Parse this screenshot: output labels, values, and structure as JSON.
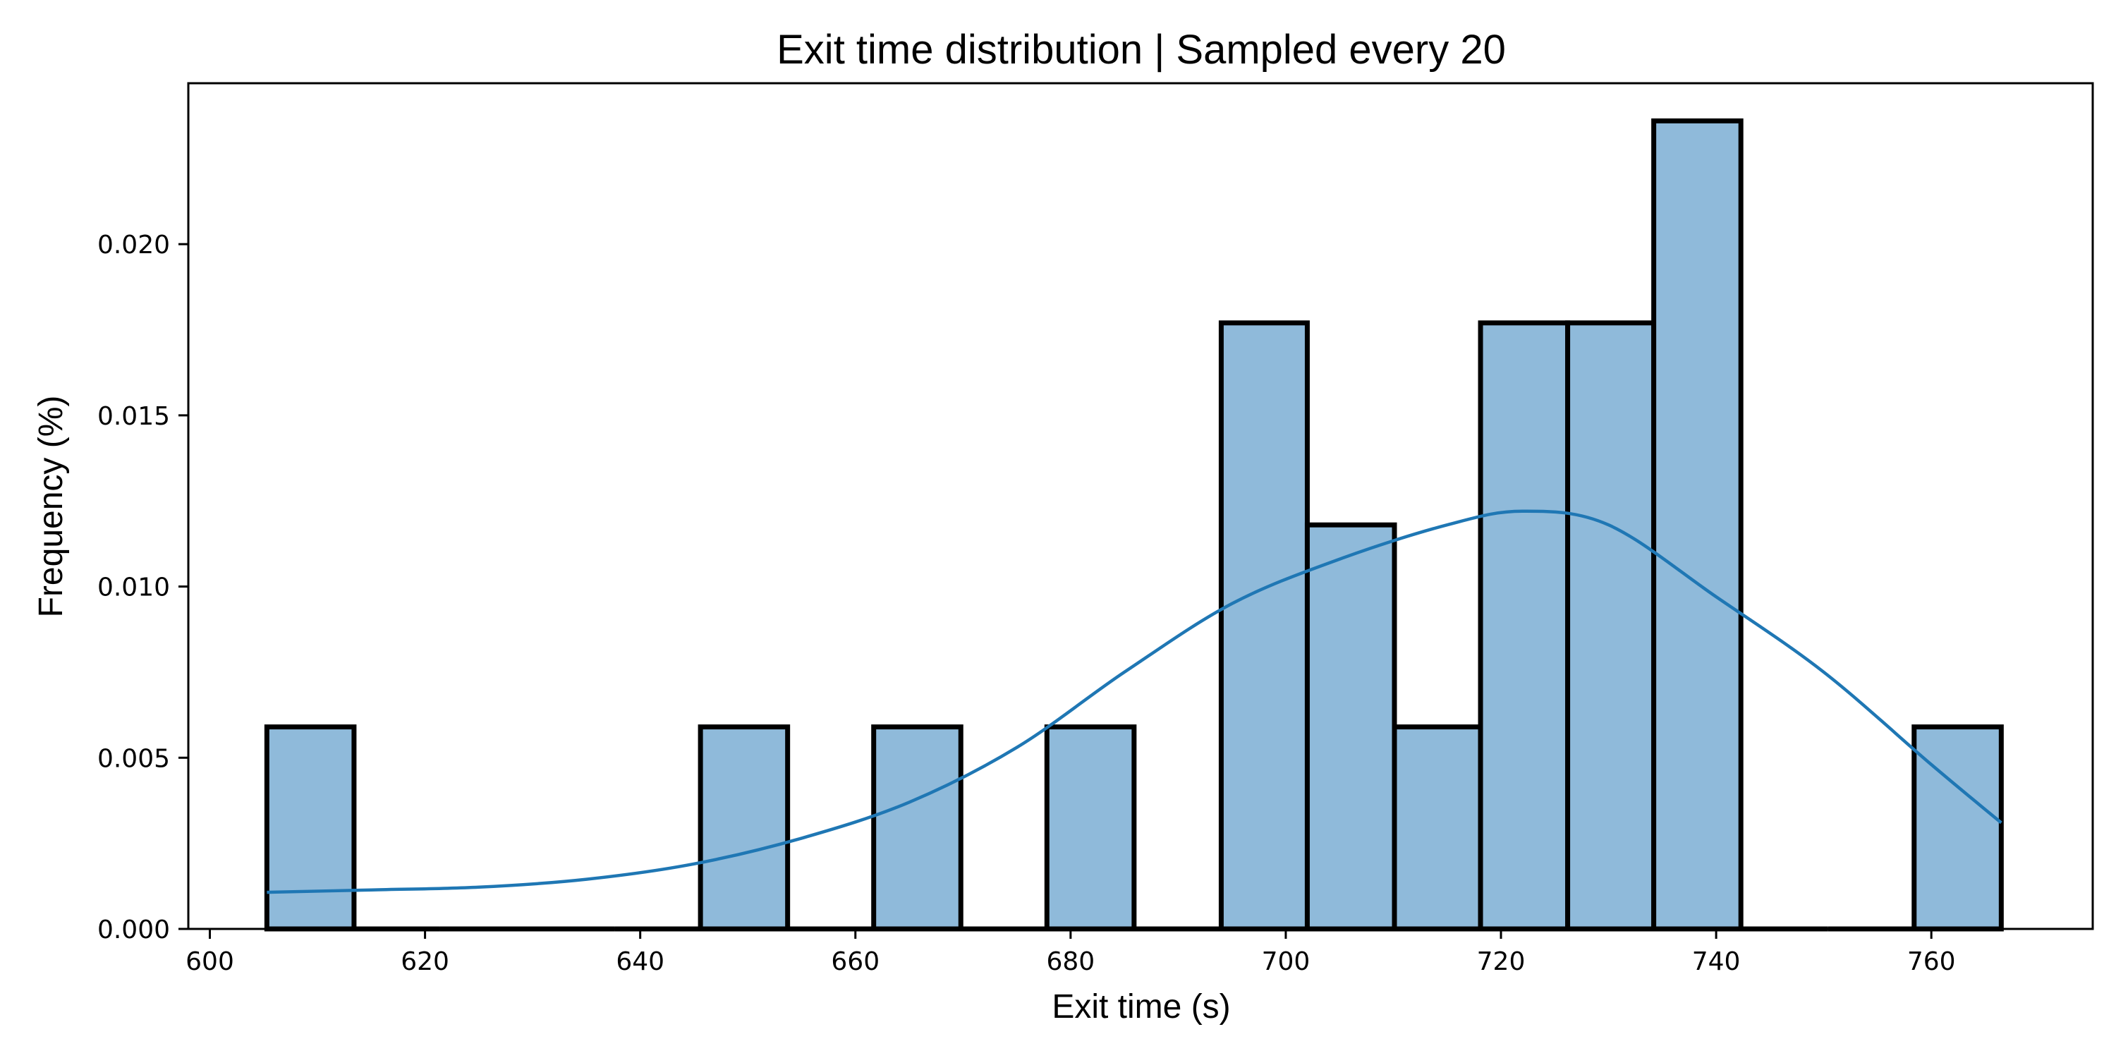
{
  "chart_data": {
    "type": "bar",
    "title": "Exit time distribution | Sampled every 20",
    "xlabel": "Exit time (s)",
    "ylabel": "Frequency (%)",
    "xlim": [
      598,
      775
    ],
    "ylim": [
      0,
      0.0247
    ],
    "x_ticks": [
      600,
      620,
      640,
      660,
      680,
      700,
      720,
      740,
      760
    ],
    "x_tick_labels": [
      "600",
      "620",
      "640",
      "660",
      "680",
      "700",
      "720",
      "740",
      "760"
    ],
    "y_ticks": [
      0,
      0.005,
      0.01,
      0.015,
      0.02
    ],
    "y_tick_labels": [
      "0.000",
      "0.005",
      "0.010",
      "0.015",
      "0.020"
    ],
    "bins": [
      {
        "x0": 605.3,
        "x1": 613.4,
        "value": 0.0059
      },
      {
        "x0": 613.4,
        "x1": 621.4,
        "value": 0.0
      },
      {
        "x0": 621.4,
        "x1": 629.5,
        "value": 0.0
      },
      {
        "x0": 629.5,
        "x1": 637.6,
        "value": 0.0
      },
      {
        "x0": 637.6,
        "x1": 645.6,
        "value": 0.0
      },
      {
        "x0": 645.6,
        "x1": 653.7,
        "value": 0.0059
      },
      {
        "x0": 653.7,
        "x1": 661.7,
        "value": 0.0
      },
      {
        "x0": 661.7,
        "x1": 669.8,
        "value": 0.0059
      },
      {
        "x0": 669.8,
        "x1": 677.8,
        "value": 0.0
      },
      {
        "x0": 677.8,
        "x1": 685.9,
        "value": 0.0059
      },
      {
        "x0": 685.9,
        "x1": 694.0,
        "value": 0.0
      },
      {
        "x0": 694.0,
        "x1": 702.0,
        "value": 0.0177
      },
      {
        "x0": 702.0,
        "x1": 710.1,
        "value": 0.0118
      },
      {
        "x0": 710.1,
        "x1": 718.1,
        "value": 0.0059
      },
      {
        "x0": 718.1,
        "x1": 726.2,
        "value": 0.0177
      },
      {
        "x0": 726.2,
        "x1": 734.2,
        "value": 0.0177
      },
      {
        "x0": 734.2,
        "x1": 742.3,
        "value": 0.0236
      },
      {
        "x0": 742.3,
        "x1": 750.4,
        "value": 0.0
      },
      {
        "x0": 750.4,
        "x1": 758.4,
        "value": 0.0
      },
      {
        "x0": 758.4,
        "x1": 766.5,
        "value": 0.0059
      }
    ],
    "kde": {
      "x": [
        605.3,
        615,
        625,
        635,
        645,
        655,
        665,
        675,
        685,
        695,
        705,
        715,
        722,
        730,
        740,
        750,
        760,
        766.5
      ],
      "y": [
        0.00107,
        0.00114,
        0.00122,
        0.00145,
        0.0019,
        0.00265,
        0.0037,
        0.0053,
        0.0075,
        0.0095,
        0.0108,
        0.0118,
        0.0122,
        0.0118,
        0.0097,
        0.0075,
        0.0048,
        0.0031
      ]
    },
    "grid": false,
    "legend": "none",
    "colors": {
      "bar_fill": "#8fbada",
      "bar_edge": "#000000",
      "kde_line": "#1f77b4"
    }
  }
}
